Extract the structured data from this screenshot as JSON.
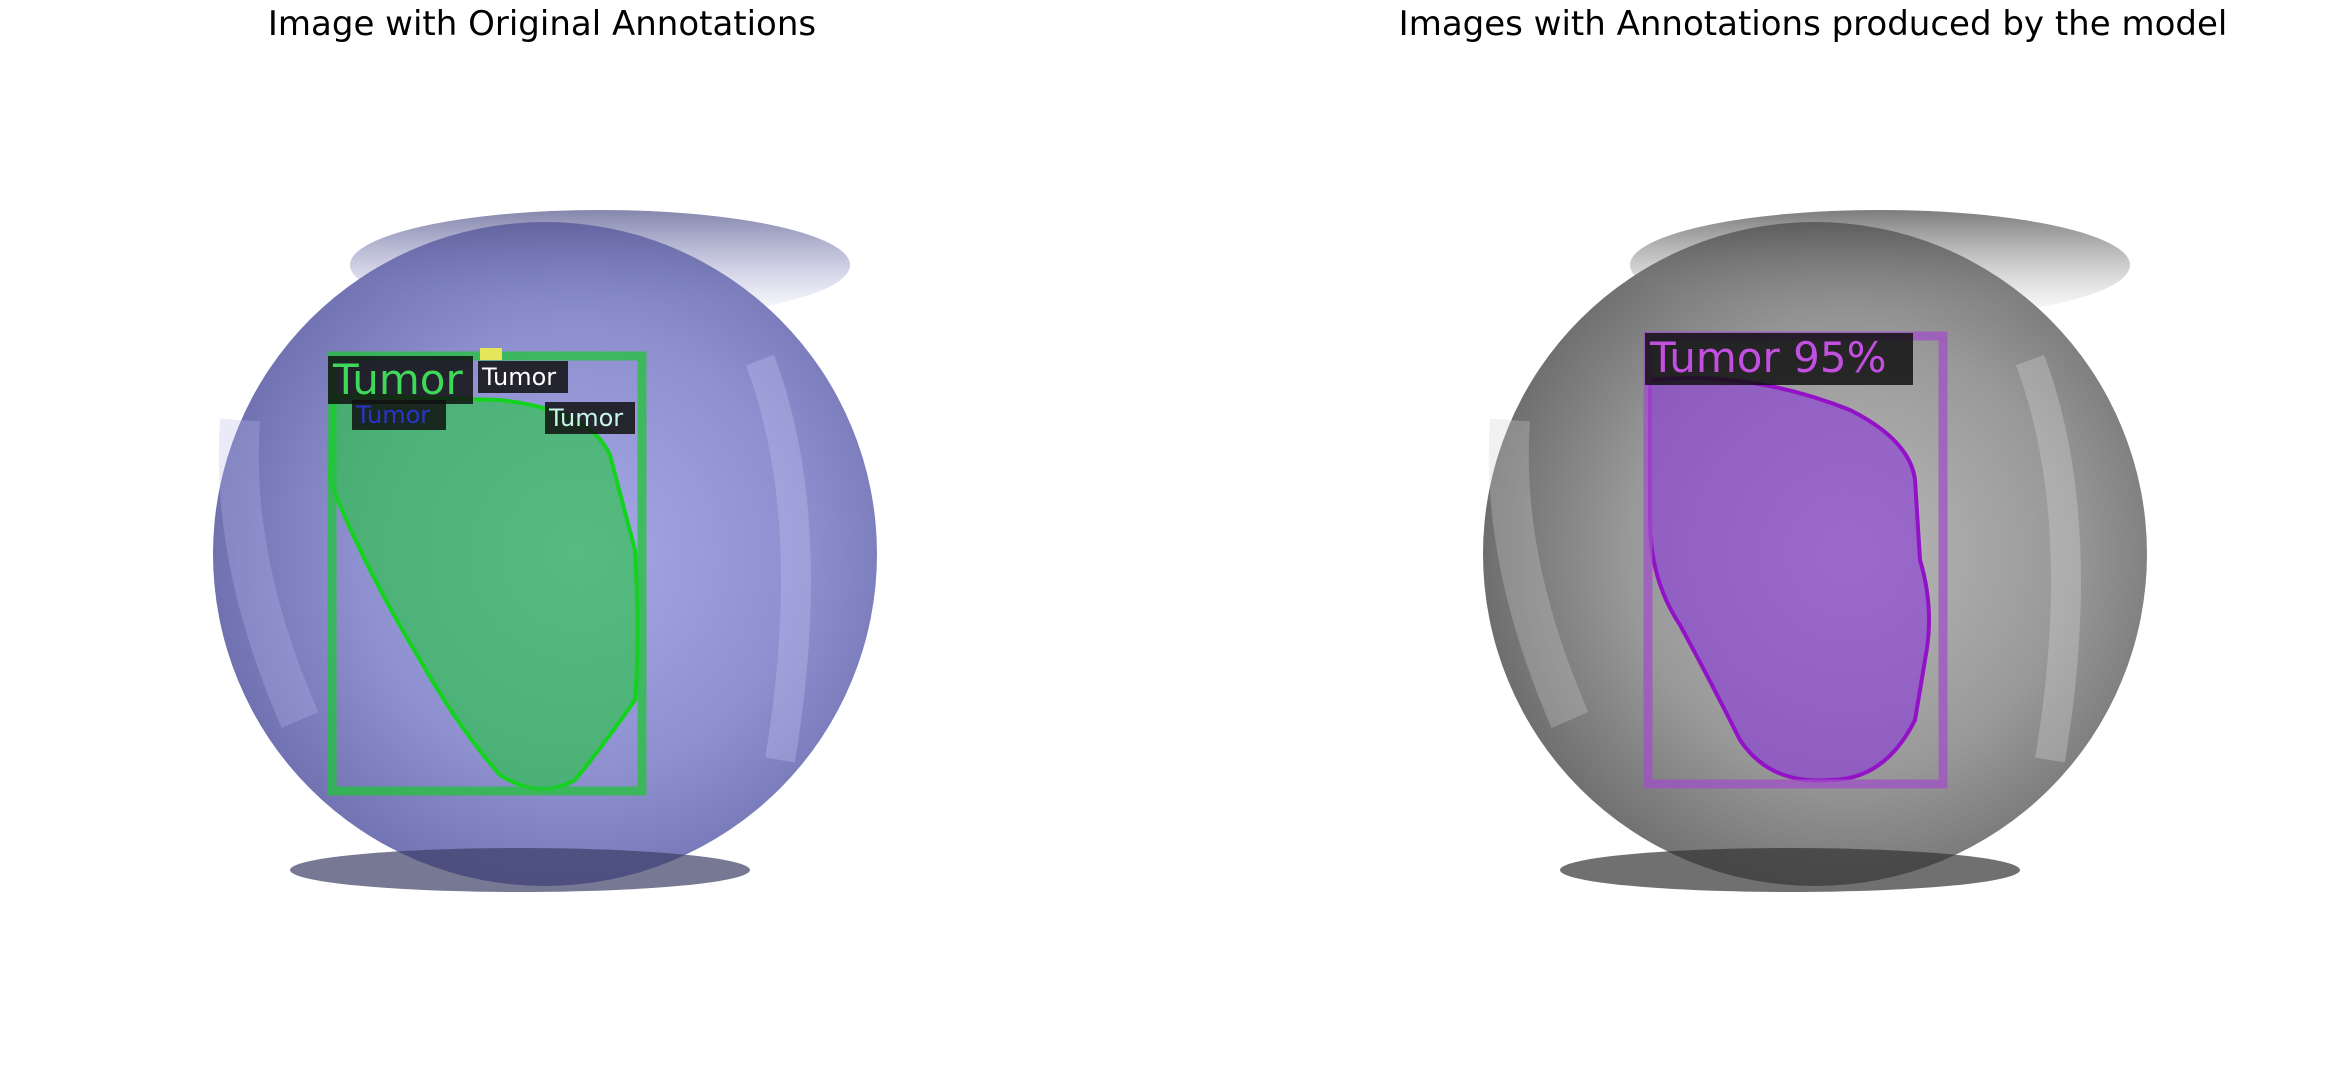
{
  "panels": {
    "left": {
      "title": "Image with Original Annotations",
      "annotations": [
        {
          "label": "Tumor",
          "color": "#3fd95a"
        },
        {
          "label": "Tumor",
          "color": "#2a35c8"
        },
        {
          "label": "Tumor",
          "color": "#ffffff"
        },
        {
          "label": "Tumor",
          "color": "#c6f5ea"
        }
      ],
      "mask_color": "#1fc83c",
      "box_color": "#22c43a",
      "image_tint": "#a9a9e0"
    },
    "right": {
      "title": "Images with Annotations produced by the model",
      "prediction": {
        "label": "Tumor",
        "score": "95%",
        "text": "Tumor 95%"
      },
      "mask_color": "#8a3ad8",
      "box_color": "#a050c8",
      "image_tint": "grayscale"
    }
  }
}
